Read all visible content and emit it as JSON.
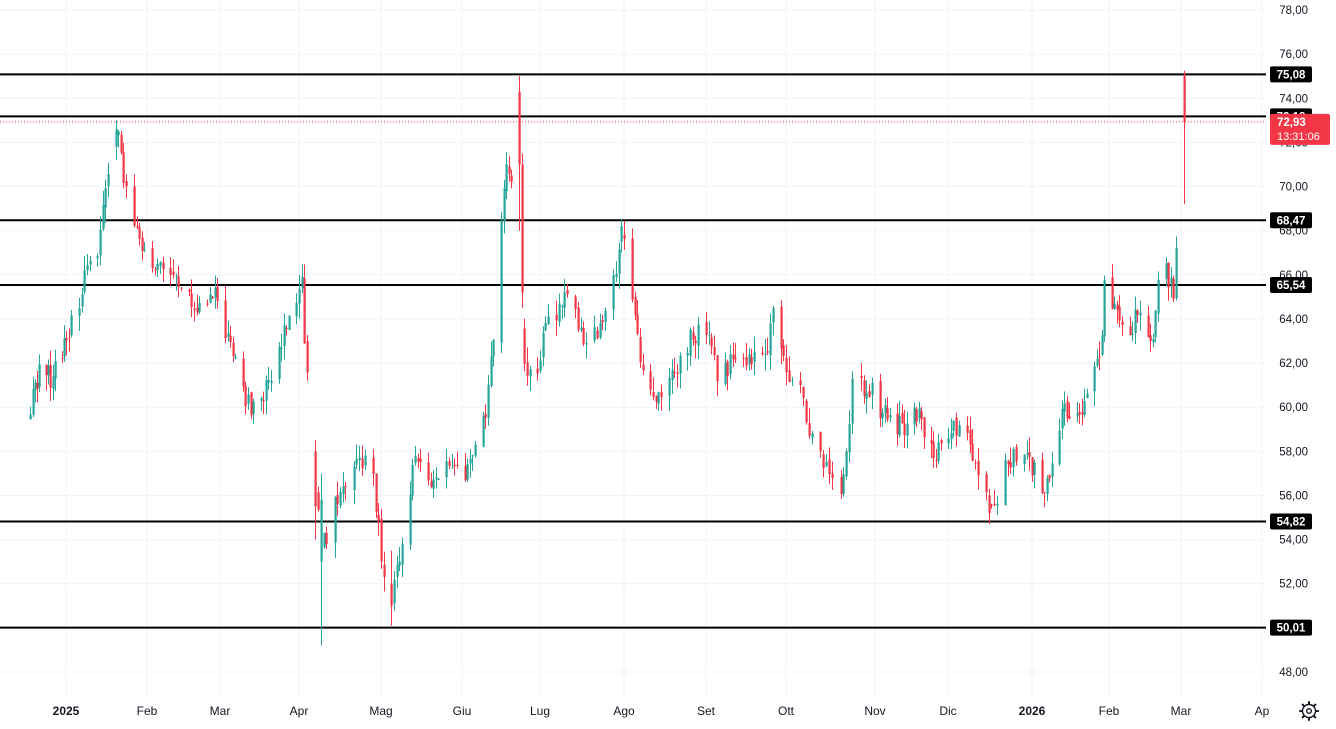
{
  "chart_data": {
    "type": "candlestick",
    "title": "",
    "y_axis": {
      "range": [
        47.2,
        78.6
      ],
      "ticks": [
        "78,00",
        "76,00",
        "74,00",
        "72,00",
        "70,00",
        "68,00",
        "66,00",
        "64,00",
        "62,00",
        "60,00",
        "58,00",
        "56,00",
        "54,00",
        "52,00",
        "50,00",
        "48,00"
      ],
      "tick_values": [
        78,
        76,
        74,
        72,
        70,
        68,
        66,
        64,
        62,
        60,
        58,
        56,
        54,
        52,
        50,
        48
      ]
    },
    "x_axis": {
      "labels": [
        {
          "text": "2025",
          "date": "2025-01-01",
          "bold": true
        },
        {
          "text": "Feb",
          "date": "2025-02-01",
          "bold": false
        },
        {
          "text": "Mar",
          "date": "2025-03-01",
          "bold": false
        },
        {
          "text": "Apr",
          "date": "2025-04-01",
          "bold": false
        },
        {
          "text": "Mag",
          "date": "2025-05-01",
          "bold": false
        },
        {
          "text": "Giu",
          "date": "2025-06-01",
          "bold": false
        },
        {
          "text": "Lug",
          "date": "2025-07-01",
          "bold": false
        },
        {
          "text": "Ago",
          "date": "2025-08-01",
          "bold": false
        },
        {
          "text": "Set",
          "date": "2025-09-01",
          "bold": false
        },
        {
          "text": "Ott",
          "date": "2025-10-01",
          "bold": false
        },
        {
          "text": "Nov",
          "date": "2025-11-01",
          "bold": false
        },
        {
          "text": "Dic",
          "date": "2025-12-01",
          "bold": false
        },
        {
          "text": "2026",
          "date": "2026-01-01",
          "bold": true
        },
        {
          "text": "Feb",
          "date": "2026-02-01",
          "bold": false
        },
        {
          "text": "Mar",
          "date": "2026-03-01",
          "bold": false
        },
        {
          "text": "Ap",
          "date": "2026-04-01",
          "bold": false
        }
      ]
    },
    "grid": true,
    "colors": {
      "up": "#26a69a",
      "down": "#f23645",
      "level": "#000000",
      "grid": "#f0f3fa",
      "axis_text": "#131722"
    },
    "horizontal_levels": [
      {
        "value": 75.08,
        "label": "75,08"
      },
      {
        "value": 73.18,
        "label": "73,18"
      },
      {
        "value": 68.47,
        "label": "68,47"
      },
      {
        "value": 65.54,
        "label": "65,54"
      },
      {
        "value": 54.82,
        "label": "54,82"
      },
      {
        "value": 50.01,
        "label": "50,01"
      }
    ],
    "last_price": {
      "value": 72.93,
      "label": "72,93",
      "countdown": "13:31:06",
      "color": "#f23645"
    },
    "price_path": [
      [
        "2024-12-15",
        59.5
      ],
      [
        "2024-12-20",
        61.8
      ],
      [
        "2024-12-26",
        61.2
      ],
      [
        "2025-01-02",
        63.5
      ],
      [
        "2025-01-08",
        65.8
      ],
      [
        "2025-01-13",
        66.5
      ],
      [
        "2025-01-17",
        70.8
      ],
      [
        "2025-01-20",
        72.7
      ],
      [
        "2025-01-23",
        70.5
      ],
      [
        "2025-01-28",
        68.0
      ],
      [
        "2025-02-05",
        66.2
      ],
      [
        "2025-02-12",
        65.8
      ],
      [
        "2025-02-20",
        64.5
      ],
      [
        "2025-02-26",
        65.2
      ],
      [
        "2025-03-04",
        63.2
      ],
      [
        "2025-03-11",
        60.0
      ],
      [
        "2025-03-20",
        60.8
      ],
      [
        "2025-03-26",
        63.2
      ],
      [
        "2025-04-02",
        65.6
      ],
      [
        "2025-04-03",
        63.0
      ],
      [
        "2025-04-07",
        56.5
      ],
      [
        "2025-04-09",
        53.5
      ],
      [
        "2025-04-16",
        56.2
      ],
      [
        "2025-04-23",
        57.8
      ],
      [
        "2025-04-28",
        57.0
      ],
      [
        "2025-05-01",
        53.0
      ],
      [
        "2025-05-05",
        51.0
      ],
      [
        "2025-05-08",
        53.5
      ],
      [
        "2025-05-14",
        58.0
      ],
      [
        "2025-05-20",
        56.8
      ],
      [
        "2025-05-27",
        57.5
      ],
      [
        "2025-06-02",
        56.5
      ],
      [
        "2025-06-06",
        58.2
      ],
      [
        "2025-06-10",
        60.0
      ],
      [
        "2025-06-13",
        63.5
      ],
      [
        "2025-06-16",
        68.0
      ],
      [
        "2025-06-18",
        71.5
      ],
      [
        "2025-06-20",
        70.5
      ],
      [
        "2025-06-23",
        74.0
      ],
      [
        "2025-06-24",
        64.0
      ],
      [
        "2025-06-25",
        61.5
      ],
      [
        "2025-06-30",
        62.0
      ],
      [
        "2025-07-04",
        63.8
      ],
      [
        "2025-07-10",
        64.8
      ],
      [
        "2025-07-16",
        63.5
      ],
      [
        "2025-07-22",
        63.0
      ],
      [
        "2025-07-28",
        65.5
      ],
      [
        "2025-07-31",
        68.0
      ],
      [
        "2025-08-04",
        64.5
      ],
      [
        "2025-08-08",
        61.5
      ],
      [
        "2025-08-14",
        60.5
      ],
      [
        "2025-08-20",
        61.8
      ],
      [
        "2025-08-26",
        63.0
      ],
      [
        "2025-09-01",
        63.5
      ],
      [
        "2025-09-05",
        61.5
      ],
      [
        "2025-09-12",
        62.0
      ],
      [
        "2025-09-18",
        62.5
      ],
      [
        "2025-09-24",
        63.0
      ],
      [
        "2025-09-26",
        64.8
      ],
      [
        "2025-09-30",
        62.0
      ],
      [
        "2025-10-06",
        60.5
      ],
      [
        "2025-10-10",
        58.5
      ],
      [
        "2025-10-16",
        57.0
      ],
      [
        "2025-10-21",
        56.5
      ],
      [
        "2025-10-24",
        61.0
      ],
      [
        "2025-10-30",
        60.8
      ],
      [
        "2025-11-06",
        59.5
      ],
      [
        "2025-11-12",
        59.0
      ],
      [
        "2025-11-18",
        59.8
      ],
      [
        "2025-11-25",
        58.0
      ],
      [
        "2025-12-01",
        58.5
      ],
      [
        "2025-12-05",
        59.5
      ],
      [
        "2025-12-10",
        58.0
      ],
      [
        "2025-12-16",
        55.2
      ],
      [
        "2025-12-19",
        56.0
      ],
      [
        "2025-12-24",
        57.8
      ],
      [
        "2025-12-31",
        57.5
      ],
      [
        "2026-01-06",
        56.2
      ],
      [
        "2026-01-09",
        57.5
      ],
      [
        "2026-01-13",
        60.0
      ],
      [
        "2026-01-20",
        59.5
      ],
      [
        "2026-01-26",
        61.5
      ],
      [
        "2026-01-29",
        63.0
      ],
      [
        "2026-01-30",
        65.5
      ],
      [
        "2026-02-04",
        64.0
      ],
      [
        "2026-02-09",
        63.5
      ],
      [
        "2026-02-12",
        64.5
      ],
      [
        "2026-02-17",
        62.5
      ],
      [
        "2026-02-20",
        65.5
      ],
      [
        "2026-02-23",
        66.2
      ],
      [
        "2026-02-26",
        65.2
      ],
      [
        "2026-02-27",
        67.0
      ],
      [
        "2026-03-02",
        72.93
      ]
    ],
    "last_candle": {
      "date": "2026-03-02",
      "open": 75.08,
      "high": 75.25,
      "low": 69.2,
      "close": 72.93
    }
  },
  "icons": {
    "settings": "gear-icon"
  }
}
